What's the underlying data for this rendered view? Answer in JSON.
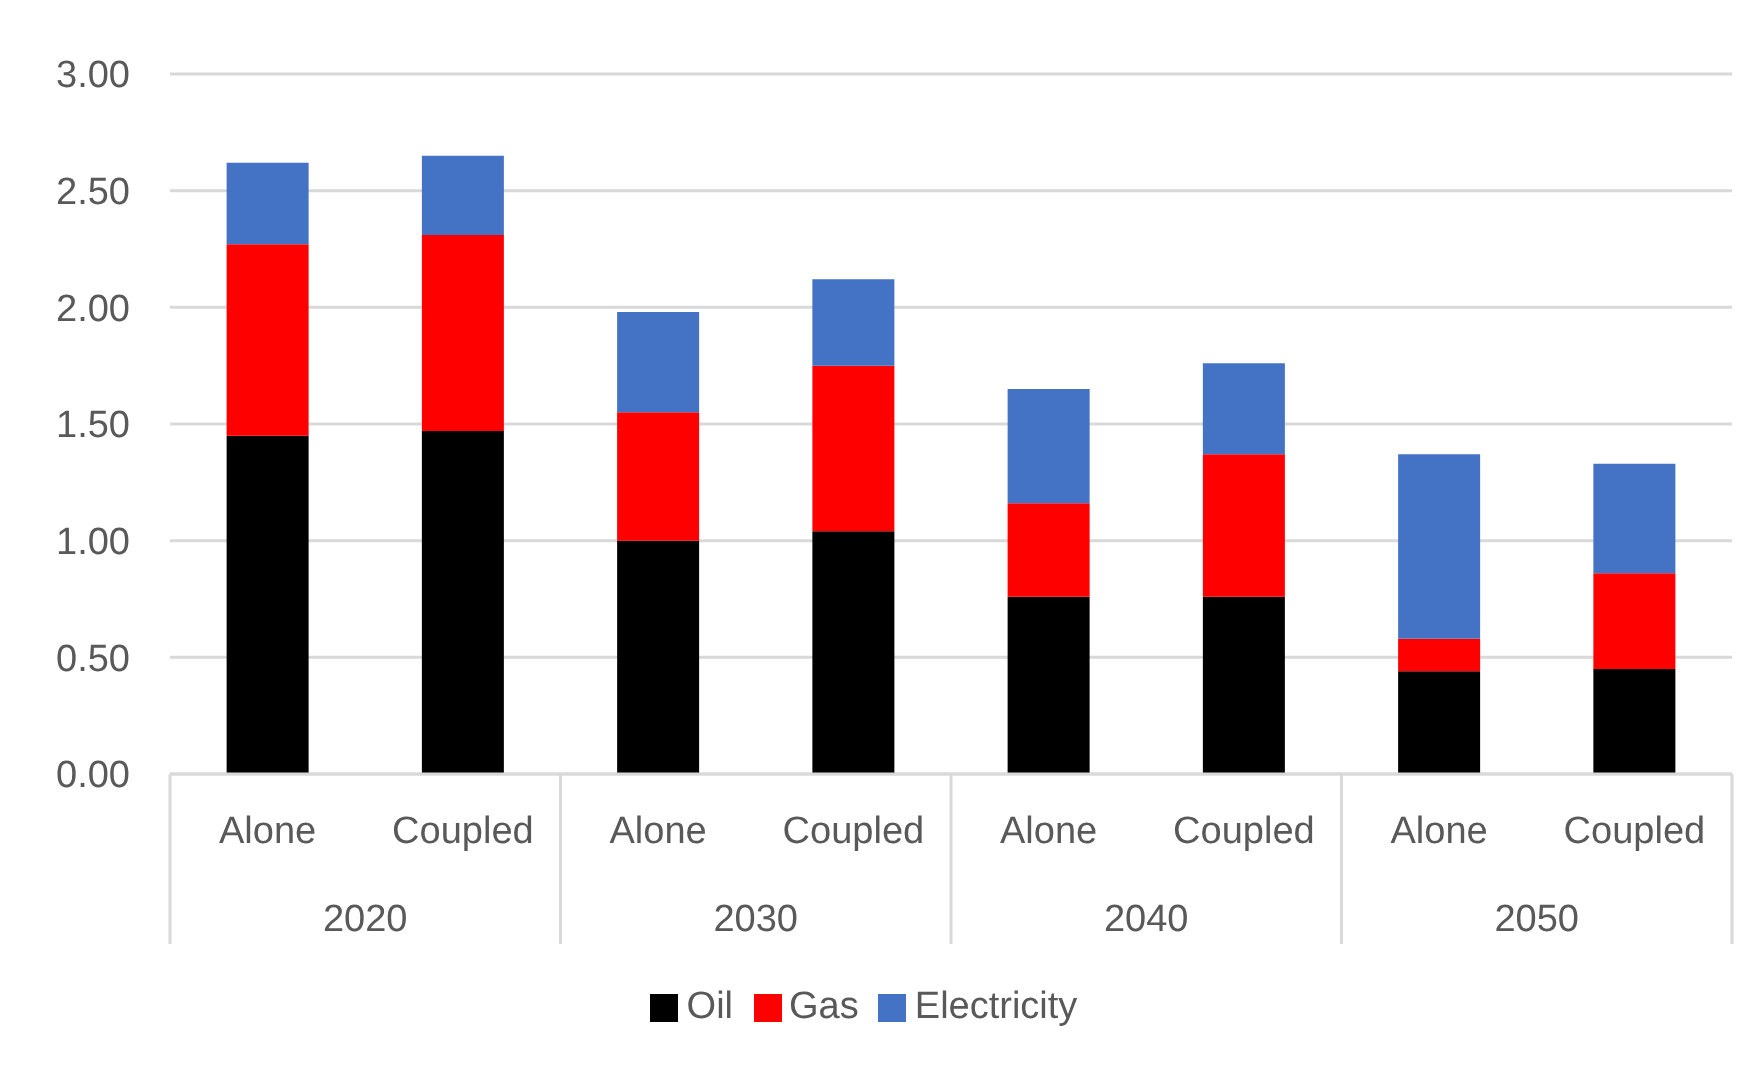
{
  "chart_data": {
    "type": "bar",
    "stacked": true,
    "categories": [
      "Alone",
      "Coupled",
      "Alone",
      "Coupled",
      "Alone",
      "Coupled",
      "Alone",
      "Coupled"
    ],
    "annotations": [
      "2020",
      "2030",
      "2040",
      "2050"
    ],
    "series": [
      {
        "name": "Oil",
        "color": "#000000",
        "values": [
          1.45,
          1.47,
          1.0,
          1.04,
          0.76,
          0.76,
          0.44,
          0.45
        ]
      },
      {
        "name": "Gas",
        "color": "#ff0000",
        "values": [
          0.82,
          0.84,
          0.55,
          0.71,
          0.4,
          0.61,
          0.14,
          0.41
        ]
      },
      {
        "name": "Electricity",
        "color": "#4472c4",
        "values": [
          0.35,
          0.34,
          0.43,
          0.37,
          0.49,
          0.39,
          0.79,
          0.47
        ]
      }
    ],
    "ylim": [
      0,
      3
    ],
    "yticks": [
      {
        "value": 0,
        "label": "0.00"
      },
      {
        "value": 0.5,
        "label": "0.50"
      },
      {
        "value": 1,
        "label": "1.00"
      },
      {
        "value": 1.5,
        "label": "1.50"
      },
      {
        "value": 2,
        "label": "2.00"
      },
      {
        "value": 2.5,
        "label": "2.50"
      },
      {
        "value": 3,
        "label": "3.00"
      }
    ],
    "grid": "y",
    "legend": "bottom"
  }
}
